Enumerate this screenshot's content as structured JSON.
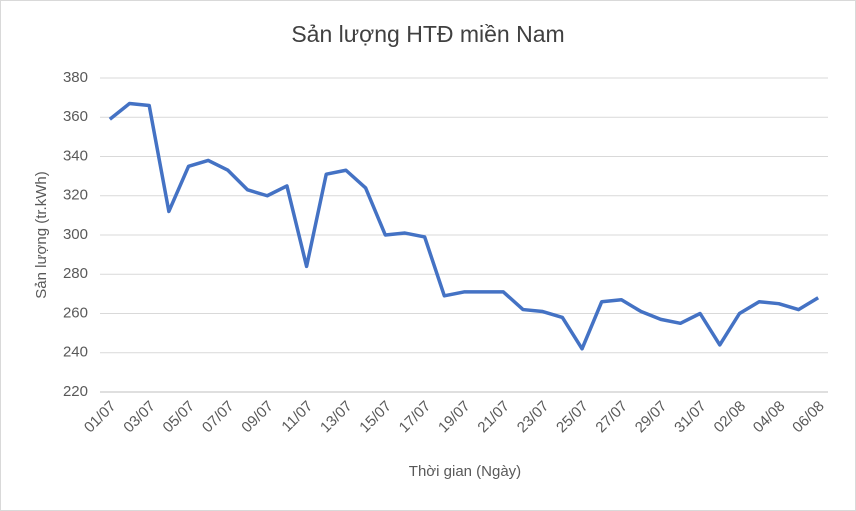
{
  "chart_data": {
    "type": "line",
    "title": "Sản lượng HTĐ miền Nam",
    "x_label": "Thời gian (Ngày)",
    "y_label": "Sản lượng (tr.kWh)",
    "categories": [
      "01/07",
      null,
      "03/07",
      null,
      "05/07",
      null,
      "07/07",
      null,
      "09/07",
      null,
      "11/07",
      null,
      "13/07",
      null,
      "15/07",
      null,
      "17/07",
      null,
      "19/07",
      null,
      "21/07",
      null,
      "23/07",
      null,
      "25/07",
      null,
      "27/07",
      null,
      "29/07",
      null,
      "31/07",
      null,
      "02/08",
      null,
      "04/08",
      null,
      "06/08"
    ],
    "series": [
      {
        "name": "Sản lượng",
        "color": "#4472c4",
        "values": [
          359,
          367,
          366,
          312,
          335,
          338,
          333,
          323,
          320,
          325,
          284,
          331,
          333,
          324,
          300,
          301,
          299,
          269,
          271,
          271,
          271,
          262,
          261,
          258,
          242,
          266,
          267,
          261,
          257,
          255,
          260,
          244,
          260,
          266,
          265,
          262,
          268
        ]
      }
    ],
    "ylim": [
      220,
      380
    ],
    "yticks": [
      220,
      240,
      260,
      280,
      300,
      320,
      340,
      360,
      380
    ],
    "grid": true
  }
}
